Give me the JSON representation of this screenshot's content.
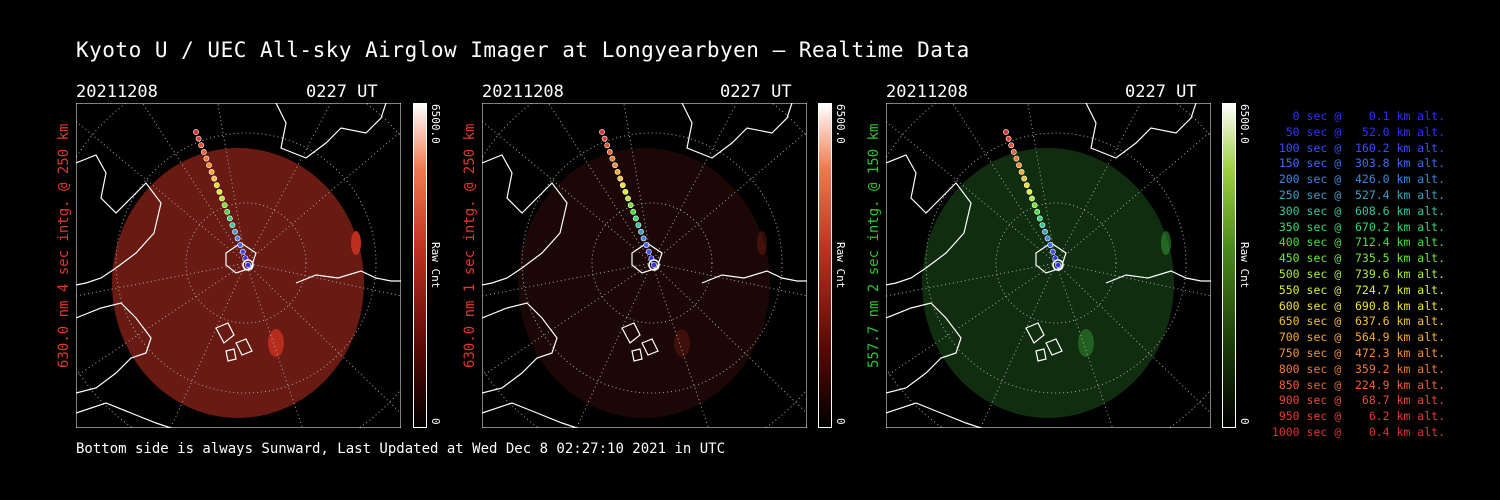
{
  "title": "Kyoto U / UEC All-sky Airglow Imager at Longyearbyen — Realtime Data",
  "panels": [
    {
      "date": "20211208",
      "ut": "0227 UT",
      "ylabel": "630.0 nm 4 sec intg. @ 250 km",
      "ylabel_color": "#e03a2a",
      "cbar_max": "6500.0",
      "cbar_min": "0",
      "cbar_unit": "Raw Cnt",
      "tint": "#c03020",
      "image_level": 0.55
    },
    {
      "date": "20211208",
      "ut": "0227 UT",
      "ylabel": "630.0 nm 1 sec intg. @ 250 km",
      "ylabel_color": "#e03a2a",
      "cbar_max": "6500.0",
      "cbar_min": "0",
      "cbar_unit": "Raw Cnt",
      "tint": "#c03020",
      "image_level": 0.14
    },
    {
      "date": "20211208",
      "ut": "0227 UT",
      "ylabel": "557.7 nm 2 sec intg. @ 150 km",
      "ylabel_color": "#2ec42e",
      "cbar_max": "6500.0",
      "cbar_min": "0",
      "cbar_unit": "Raw Cnt",
      "tint": "#3aa03a",
      "image_level": 0.28
    }
  ],
  "footer": "Bottom side is always Sunward, Last Updated at Wed Dec  8 02:27:10 2021 in UTC",
  "legend": [
    {
      "text": "   0 sec @    0.1 km alt.",
      "color": "#3030ff"
    },
    {
      "text": "  50 sec @   52.0 km alt.",
      "color": "#3030ff"
    },
    {
      "text": " 100 sec @  160.2 km alt.",
      "color": "#3a50ff"
    },
    {
      "text": " 150 sec @  303.8 km alt.",
      "color": "#3a6cff"
    },
    {
      "text": " 200 sec @  426.0 km alt.",
      "color": "#3a88e8"
    },
    {
      "text": " 250 sec @  527.4 km alt.",
      "color": "#3aa0c8"
    },
    {
      "text": " 300 sec @  608.6 km alt.",
      "color": "#30c8a0"
    },
    {
      "text": " 350 sec @  670.2 km alt.",
      "color": "#30d870"
    },
    {
      "text": " 400 sec @  712.4 km alt.",
      "color": "#40e040"
    },
    {
      "text": " 450 sec @  735.5 km alt.",
      "color": "#70e830"
    },
    {
      "text": " 500 sec @  739.6 km alt.",
      "color": "#a8f030"
    },
    {
      "text": " 550 sec @  724.7 km alt.",
      "color": "#d8f030"
    },
    {
      "text": " 600 sec @  690.8 km alt.",
      "color": "#f0e030"
    },
    {
      "text": " 650 sec @  637.6 km alt.",
      "color": "#f8c030"
    },
    {
      "text": " 700 sec @  564.9 km alt.",
      "color": "#f8a830"
    },
    {
      "text": " 750 sec @  472.3 km alt.",
      "color": "#f89030"
    },
    {
      "text": " 800 sec @  359.2 km alt.",
      "color": "#f07830"
    },
    {
      "text": " 850 sec @  224.9 km alt.",
      "color": "#f06030"
    },
    {
      "text": " 900 sec @   68.7 km alt.",
      "color": "#e84a30"
    },
    {
      "text": " 950 sec @    6.2 km alt.",
      "color": "#e83a30"
    },
    {
      "text": "1000 sec @    0.4 km alt.",
      "color": "#e03030"
    }
  ]
}
